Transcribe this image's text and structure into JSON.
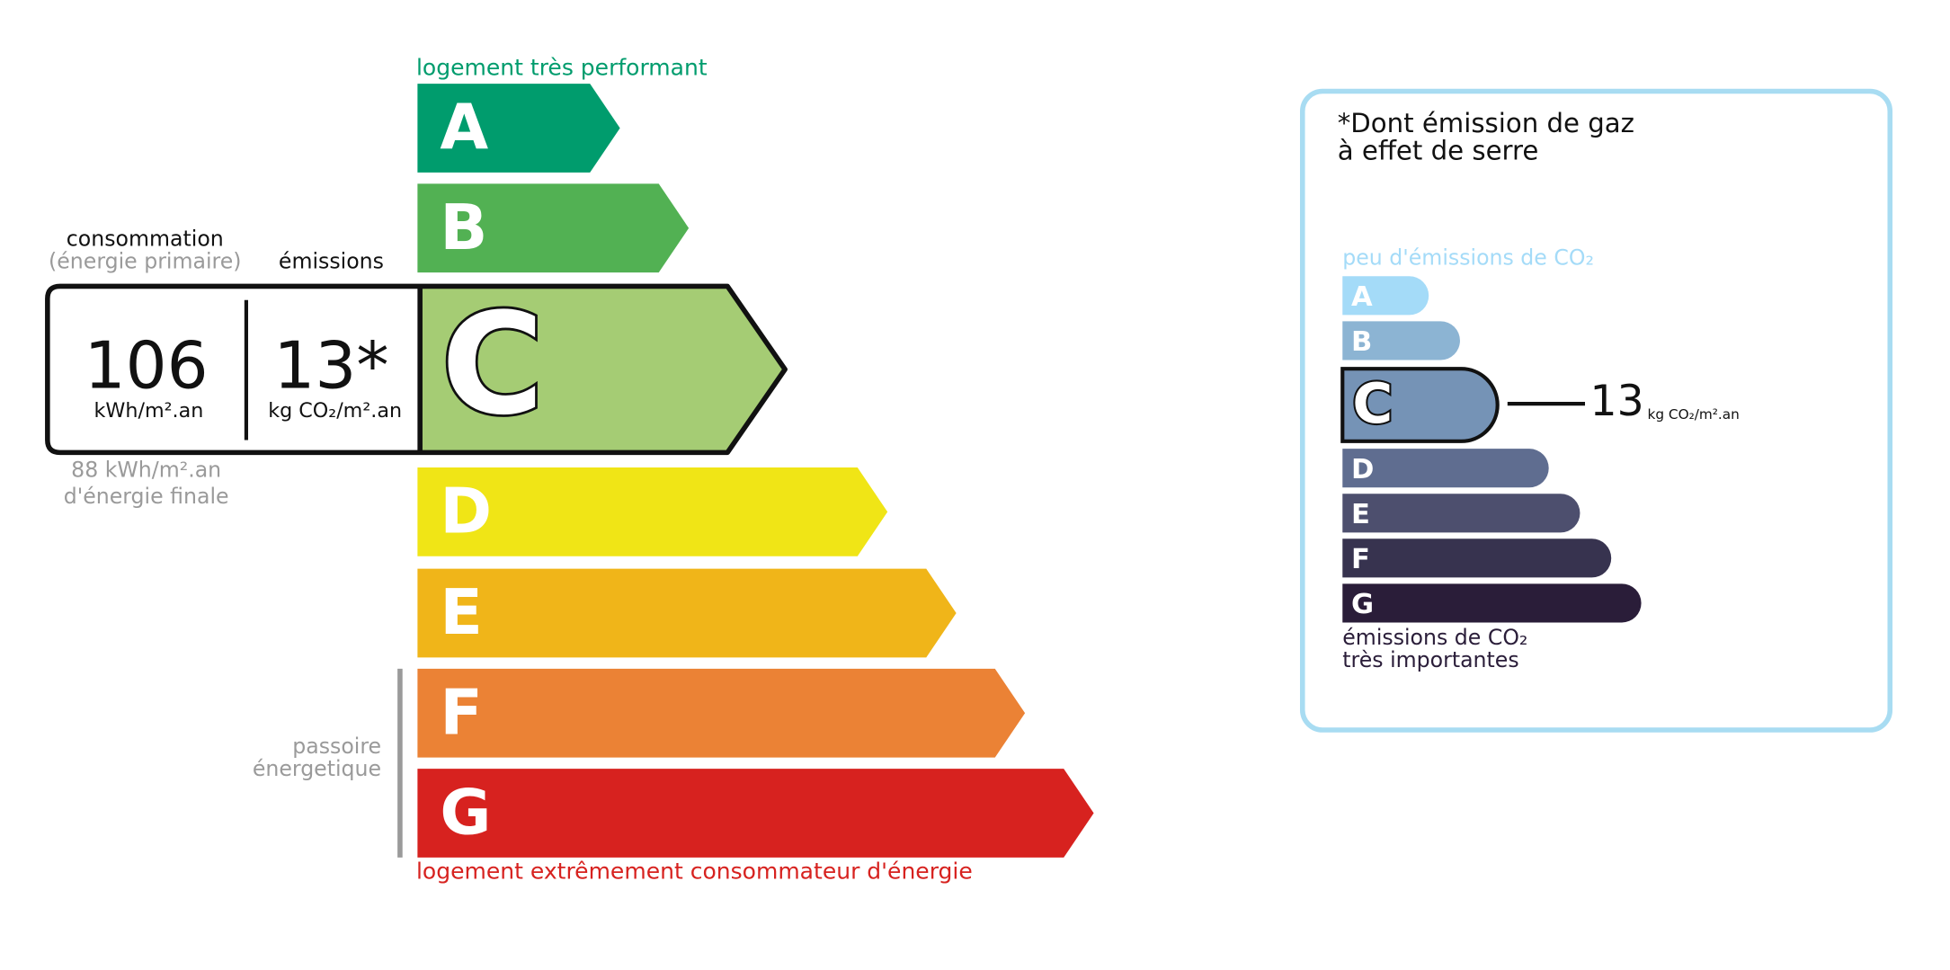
{
  "energy_scale": {
    "top_label": "logement très performant",
    "bottom_label": "logement extrêmement consommateur d'énergie",
    "classes": [
      "A",
      "B",
      "C",
      "D",
      "E",
      "F",
      "G"
    ],
    "current_class": "C",
    "poor_label_lines": [
      "passoire",
      "énergetique"
    ]
  },
  "consumption": {
    "heading": "consommation",
    "subheading": "(énergie primaire)",
    "value": 106,
    "unit": "kWh/m².an",
    "final_lines": [
      "88 kWh/m².an",
      "d'énergie finale"
    ]
  },
  "emissions": {
    "heading": "émissions",
    "value": "13*",
    "unit": "kg CO₂/m².an"
  },
  "ghg_box": {
    "title_lines": [
      "*Dont émission de gaz",
      "à effet de serre"
    ],
    "top_label": "peu d'émissions de CO₂",
    "bottom_label_lines": [
      "émissions de CO₂",
      "très importantes"
    ],
    "classes": [
      "A",
      "B",
      "C",
      "D",
      "E",
      "F",
      "G"
    ],
    "current_class": "C",
    "value": 13,
    "unit": "kg CO₂/m².an"
  }
}
